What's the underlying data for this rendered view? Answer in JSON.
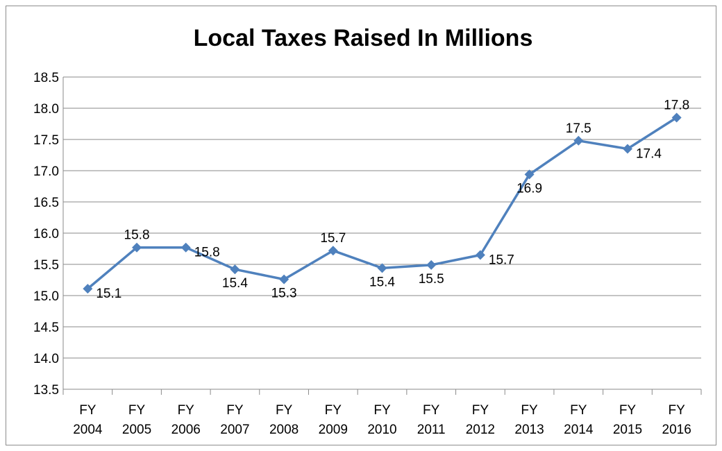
{
  "chart_data": {
    "type": "line",
    "title": "Local Taxes Raised In Millions",
    "xlabel": "",
    "ylabel": "",
    "ylim": [
      13.5,
      18.5
    ],
    "yticks": [
      "13.5",
      "14.0",
      "14.5",
      "15.0",
      "15.5",
      "16.0",
      "16.5",
      "17.0",
      "17.5",
      "18.0",
      "18.5"
    ],
    "grid": true,
    "legend": "none",
    "categories": [
      [
        "FY",
        "2004"
      ],
      [
        "FY",
        "2005"
      ],
      [
        "FY",
        "2006"
      ],
      [
        "FY",
        "2007"
      ],
      [
        "FY",
        "2008"
      ],
      [
        "FY",
        "2009"
      ],
      [
        "FY",
        "2010"
      ],
      [
        "FY",
        "2011"
      ],
      [
        "FY",
        "2012"
      ],
      [
        "FY",
        "2013"
      ],
      [
        "FY",
        "2014"
      ],
      [
        "FY",
        "2015"
      ],
      [
        "FY",
        "2016"
      ]
    ],
    "series": [
      {
        "values": [
          15.11,
          15.77,
          15.77,
          15.42,
          15.26,
          15.72,
          15.44,
          15.49,
          15.65,
          16.94,
          17.48,
          17.35,
          17.85
        ],
        "labels": [
          "15.1",
          "15.8",
          "15.8",
          "15.4",
          "15.3",
          "15.7",
          "15.4",
          "15.5",
          "15.7",
          "16.9",
          "17.5",
          "17.4",
          "17.8"
        ],
        "label_positions": [
          "right",
          "above",
          "right",
          "below",
          "below",
          "above",
          "below",
          "below",
          "right",
          "below",
          "above",
          "right",
          "above"
        ],
        "color": "#4f81bd"
      }
    ]
  }
}
